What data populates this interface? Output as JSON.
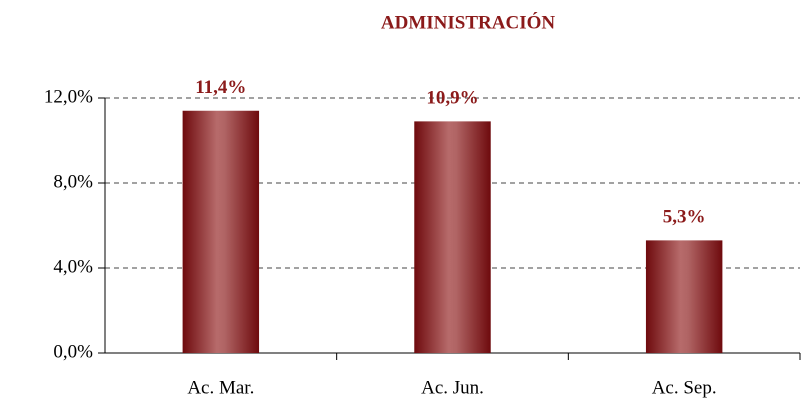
{
  "chart_data": {
    "type": "bar",
    "title": "ADMINISTRACIÓN",
    "categories": [
      "Ac. Mar.",
      "Ac. Jun.",
      "Ac. Sep."
    ],
    "values": [
      11.4,
      10.9,
      5.3
    ],
    "value_labels": [
      "11,4%",
      "10,9%",
      "5,3%"
    ],
    "color": "#7a0f12",
    "ylim": [
      0,
      12
    ],
    "yticks": [
      {
        "value": 0,
        "label": "0,0%"
      },
      {
        "value": 4,
        "label": "4,0%"
      },
      {
        "value": 8,
        "label": "8,0%"
      },
      {
        "value": 12,
        "label": "12,0%"
      }
    ],
    "grid": true
  }
}
